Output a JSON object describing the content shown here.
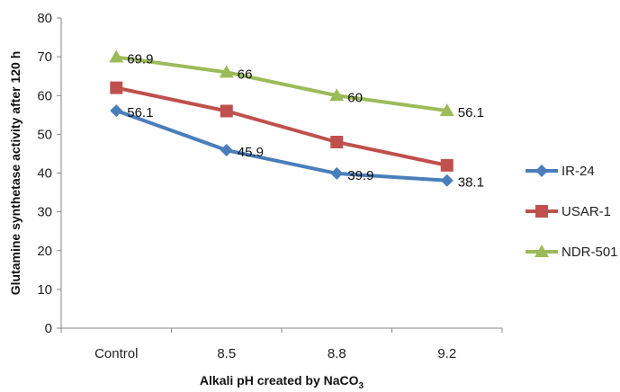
{
  "chart_data": {
    "type": "line",
    "title": "",
    "xlabel": "Alkali pH created by NaCO",
    "xlabel_subscript": "3",
    "ylabel": "Glutamine synthetase activity after 120 h",
    "categories": [
      "Control",
      "8.5",
      "8.8",
      "9.2"
    ],
    "ylim": [
      0,
      80
    ],
    "yticks": [
      0,
      10,
      20,
      30,
      40,
      50,
      60,
      70,
      80
    ],
    "legend_position": "right",
    "grid": false,
    "series": [
      {
        "name": "IR-24",
        "values": [
          56.1,
          45.9,
          39.9,
          38.1
        ],
        "labels": [
          "56.1",
          "45.9",
          "39.9",
          "38.1"
        ],
        "color": "#4a7ebb",
        "marker": "diamond"
      },
      {
        "name": "USAR-1",
        "values": [
          62,
          56,
          48,
          42
        ],
        "labels": [],
        "color": "#c0504d",
        "marker": "square"
      },
      {
        "name": "NDR-501",
        "values": [
          69.9,
          66,
          60,
          56.1
        ],
        "labels": [
          "69.9",
          "66",
          "60",
          "56.1"
        ],
        "color": "#9bbb59",
        "marker": "triangle"
      }
    ]
  }
}
